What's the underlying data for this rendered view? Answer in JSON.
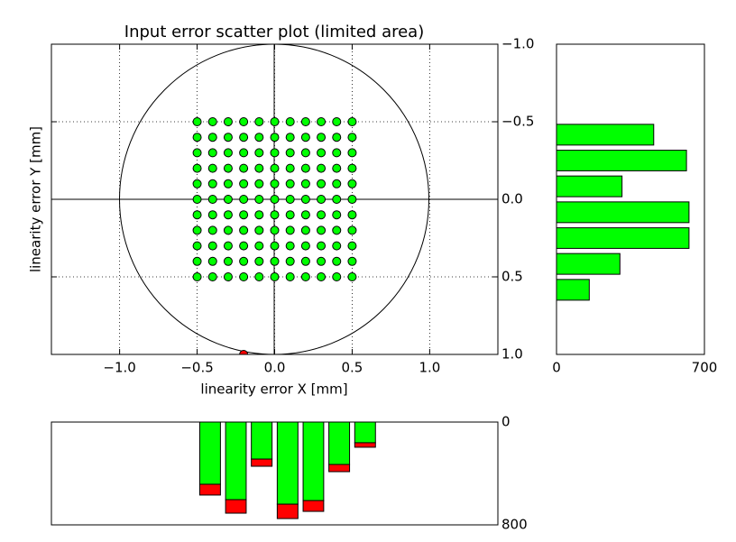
{
  "chart_data": [
    {
      "type": "scatter",
      "title": "Input error scatter plot (limited area)",
      "x_label": "linearity error X [mm]",
      "y_label": "linearity error Y [mm]",
      "xlim": [
        -1.44,
        1.44
      ],
      "ylim": [
        1,
        -1
      ],
      "xticks": [
        {
          "value": -1,
          "label": "−1.0"
        },
        {
          "value": -0.5,
          "label": "−0.5"
        },
        {
          "value": 0,
          "label": "0.0"
        },
        0.5,
        {
          "value": 1,
          "label": "1.0"
        }
      ],
      "yticks": [
        {
          "value": -1,
          "label": "−1.0"
        },
        {
          "value": -0.5,
          "label": "−0.5"
        },
        {
          "value": 0,
          "label": "0.0"
        },
        0.5,
        {
          "value": 1,
          "label": "1.0"
        }
      ],
      "grid": true,
      "series": [
        {
          "color": "#00ff00",
          "x": [
            -0.5,
            -0.4,
            -0.3,
            -0.2,
            -0.1,
            0,
            0.1,
            0.2,
            0.3,
            0.4,
            0.5,
            -0.5,
            -0.4,
            -0.3,
            -0.2,
            -0.1,
            0,
            0.1,
            0.2,
            0.3,
            0.4,
            0.5,
            -0.5,
            -0.4,
            -0.3,
            -0.2,
            -0.1,
            0,
            0.1,
            0.2,
            0.3,
            0.4,
            0.5,
            -0.5,
            -0.4,
            -0.3,
            -0.2,
            -0.1,
            0,
            0.1,
            0.2,
            0.3,
            0.4,
            0.5,
            -0.5,
            -0.4,
            -0.3,
            -0.2,
            -0.1,
            0,
            0.1,
            0.2,
            0.3,
            0.4,
            0.5,
            -0.5,
            -0.4,
            -0.3,
            -0.2,
            -0.1,
            0,
            0.1,
            0.2,
            0.3,
            0.4,
            0.5,
            -0.5,
            -0.4,
            -0.3,
            -0.2,
            -0.1,
            0,
            0.1,
            0.2,
            0.3,
            0.4,
            0.5,
            -0.5,
            -0.4,
            -0.3,
            -0.2,
            -0.1,
            0,
            0.1,
            0.2,
            0.3,
            0.4,
            0.5,
            -0.5,
            -0.4,
            -0.3,
            -0.2,
            -0.1,
            0,
            0.1,
            0.2,
            0.3,
            0.4,
            0.5,
            -0.5,
            -0.4,
            -0.3,
            -0.2,
            -0.1,
            0,
            0.1,
            0.2,
            0.3,
            0.4,
            0.5,
            -0.5,
            -0.4,
            -0.3,
            -0.2,
            -0.1,
            0,
            0.1,
            0.2,
            0.3,
            0.4,
            0.5
          ],
          "values": [
            -0.5,
            -0.5,
            -0.5,
            -0.5,
            -0.5,
            -0.5,
            -0.5,
            -0.5,
            -0.5,
            -0.5,
            -0.5,
            -0.4,
            -0.4,
            -0.4,
            -0.4,
            -0.4,
            -0.4,
            -0.4,
            -0.4,
            -0.4,
            -0.4,
            -0.4,
            -0.3,
            -0.3,
            -0.3,
            -0.3,
            -0.3,
            -0.3,
            -0.3,
            -0.3,
            -0.3,
            -0.3,
            -0.3,
            -0.2,
            -0.2,
            -0.2,
            -0.2,
            -0.2,
            -0.2,
            -0.2,
            -0.2,
            -0.2,
            -0.2,
            -0.2,
            -0.1,
            -0.1,
            -0.1,
            -0.1,
            -0.1,
            -0.1,
            -0.1,
            -0.1,
            -0.1,
            -0.1,
            -0.1,
            0,
            0,
            0,
            0,
            0,
            0,
            0,
            0,
            0,
            0,
            0,
            0.1,
            0.1,
            0.1,
            0.1,
            0.1,
            0.1,
            0.1,
            0.1,
            0.1,
            0.1,
            0.1,
            0.2,
            0.2,
            0.2,
            0.2,
            0.2,
            0.2,
            0.2,
            0.2,
            0.2,
            0.2,
            0.2,
            0.3,
            0.3,
            0.3,
            0.3,
            0.3,
            0.3,
            0.3,
            0.3,
            0.3,
            0.3,
            0.3,
            0.4,
            0.4,
            0.4,
            0.4,
            0.4,
            0.4,
            0.4,
            0.4,
            0.4,
            0.4,
            0.4,
            0.5,
            0.5,
            0.5,
            0.5,
            0.5,
            0.5,
            0.5,
            0.5,
            0.5,
            0.5,
            0.5
          ]
        },
        {
          "color": "#ff0000",
          "x": [
            -0.2
          ],
          "values": [
            1
          ]
        }
      ]
    },
    {
      "type": "histogram",
      "orientation": "horizontal",
      "bins": [
        -1,
        -0.833,
        -0.667,
        -0.5,
        -0.333,
        -0.167,
        0,
        0.167,
        0.333,
        0.5,
        0.667,
        0.833,
        1
      ],
      "ylim": [
        1,
        -1
      ],
      "xlim": [
        0,
        700
      ],
      "xticks": [
        0,
        700
      ],
      "series": [
        {
          "color": "#00ff00",
          "values": [
            0,
            0,
            0,
            460,
            615,
            310,
            627,
            627,
            300,
            155,
            0,
            0
          ]
        }
      ]
    },
    {
      "type": "histogram",
      "orientation": "vertical",
      "bins": [
        -1,
        -0.833,
        -0.667,
        -0.5,
        -0.333,
        -0.167,
        0,
        0.167,
        0.333,
        0.5,
        0.667,
        0.833,
        1
      ],
      "xlim": [
        -1.44,
        1.44
      ],
      "ylim": [
        800,
        0
      ],
      "yticks": [
        0,
        800
      ],
      "series": [
        {
          "color": "#00ff00",
          "values": [
            0,
            0,
            0,
            484,
            604,
            288,
            639,
            611,
            330,
            161,
            0,
            0
          ]
        },
        {
          "color": "#ff0000",
          "values": [
            0,
            0,
            0,
            84,
            105,
            56,
            112,
            84,
            56,
            35,
            0,
            0
          ]
        }
      ]
    }
  ]
}
